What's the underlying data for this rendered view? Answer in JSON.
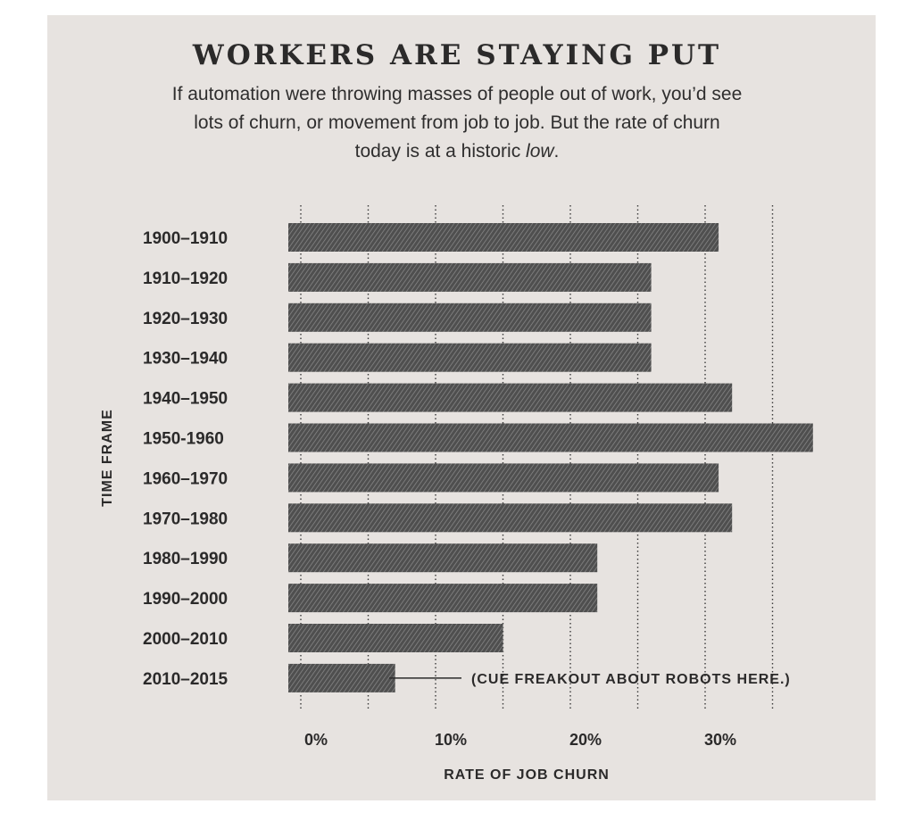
{
  "chart_data": {
    "type": "bar",
    "orientation": "horizontal",
    "title": "WORKERS ARE STAYING PUT",
    "subtitle_before": "If automation were throwing masses of people out of work, you’d see lots of churn, or movement from job to job. But the rate of churn today is at a historic ",
    "subtitle_emphasis": "low",
    "subtitle_after": ".",
    "categories": [
      "1900–1910",
      "1910–1920",
      "1920–1930",
      "1930–1940",
      "1940–1950",
      "1950-1960",
      "1960–1970",
      "1970–1980",
      "1980–1990",
      "1990–2000",
      "2000–2010",
      "2010–2015"
    ],
    "values": [
      31,
      26,
      26,
      26,
      32,
      38,
      31,
      32,
      22,
      22,
      15,
      7
    ],
    "xlabel": "RATE OF JOB CHURN",
    "ylabel": "TIME FRAME",
    "xticks": [
      {
        "value": 0,
        "label": "0%"
      },
      {
        "value": 10,
        "label": "10%"
      },
      {
        "value": 20,
        "label": "20%"
      },
      {
        "value": 30,
        "label": "30%"
      }
    ],
    "xlim": [
      -1,
      39
    ],
    "grid": "vertical dotted, every 5%",
    "annotation": {
      "category": "2010–2015",
      "text": "(CUE FREAKOUT ABOUT ROBOTS HERE.)"
    },
    "colors": {
      "background": "#e7e3e0",
      "bar": "#5a5a5a",
      "text": "#2b2a2a"
    }
  }
}
